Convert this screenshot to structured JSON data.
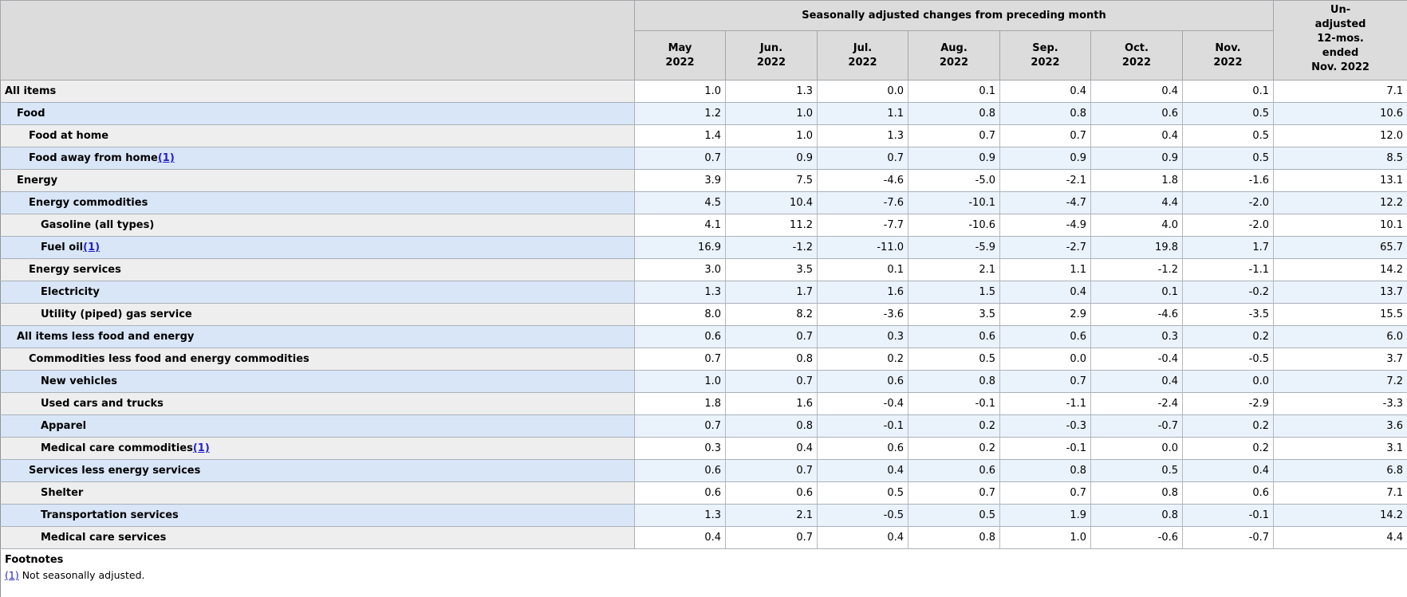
{
  "table": {
    "header": {
      "group_title": "Seasonally adjusted changes from preceding month",
      "months": [
        {
          "month": "May",
          "year": "2022"
        },
        {
          "month": "Jun.",
          "year": "2022"
        },
        {
          "month": "Jul.",
          "year": "2022"
        },
        {
          "month": "Aug.",
          "year": "2022"
        },
        {
          "month": "Sep.",
          "year": "2022"
        },
        {
          "month": "Oct.",
          "year": "2022"
        },
        {
          "month": "Nov.",
          "year": "2022"
        }
      ],
      "unadjusted_lines": [
        "Un-",
        "adjusted",
        "12-mos.",
        "ended",
        "Nov. 2022"
      ]
    },
    "rows": [
      {
        "label": "All items",
        "indent": 0,
        "footnote_marker": "",
        "values": [
          "1.0",
          "1.3",
          "0.0",
          "0.1",
          "0.4",
          "0.4",
          "0.1"
        ],
        "unadjusted": "7.1"
      },
      {
        "label": "Food",
        "indent": 1,
        "footnote_marker": "",
        "values": [
          "1.2",
          "1.0",
          "1.1",
          "0.8",
          "0.8",
          "0.6",
          "0.5"
        ],
        "unadjusted": "10.6"
      },
      {
        "label": "Food at home",
        "indent": 2,
        "footnote_marker": "",
        "values": [
          "1.4",
          "1.0",
          "1.3",
          "0.7",
          "0.7",
          "0.4",
          "0.5"
        ],
        "unadjusted": "12.0"
      },
      {
        "label": "Food away from home",
        "indent": 2,
        "footnote_marker": "(1)",
        "values": [
          "0.7",
          "0.9",
          "0.7",
          "0.9",
          "0.9",
          "0.9",
          "0.5"
        ],
        "unadjusted": "8.5"
      },
      {
        "label": "Energy",
        "indent": 1,
        "footnote_marker": "",
        "values": [
          "3.9",
          "7.5",
          "-4.6",
          "-5.0",
          "-2.1",
          "1.8",
          "-1.6"
        ],
        "unadjusted": "13.1"
      },
      {
        "label": "Energy commodities",
        "indent": 2,
        "footnote_marker": "",
        "values": [
          "4.5",
          "10.4",
          "-7.6",
          "-10.1",
          "-4.7",
          "4.4",
          "-2.0"
        ],
        "unadjusted": "12.2"
      },
      {
        "label": "Gasoline (all types)",
        "indent": 3,
        "footnote_marker": "",
        "values": [
          "4.1",
          "11.2",
          "-7.7",
          "-10.6",
          "-4.9",
          "4.0",
          "-2.0"
        ],
        "unadjusted": "10.1"
      },
      {
        "label": "Fuel oil",
        "indent": 3,
        "footnote_marker": "(1)",
        "values": [
          "16.9",
          "-1.2",
          "-11.0",
          "-5.9",
          "-2.7",
          "19.8",
          "1.7"
        ],
        "unadjusted": "65.7"
      },
      {
        "label": "Energy services",
        "indent": 2,
        "footnote_marker": "",
        "values": [
          "3.0",
          "3.5",
          "0.1",
          "2.1",
          "1.1",
          "-1.2",
          "-1.1"
        ],
        "unadjusted": "14.2"
      },
      {
        "label": "Electricity",
        "indent": 3,
        "footnote_marker": "",
        "values": [
          "1.3",
          "1.7",
          "1.6",
          "1.5",
          "0.4",
          "0.1",
          "-0.2"
        ],
        "unadjusted": "13.7"
      },
      {
        "label": "Utility (piped) gas service",
        "indent": 3,
        "footnote_marker": "",
        "values": [
          "8.0",
          "8.2",
          "-3.6",
          "3.5",
          "2.9",
          "-4.6",
          "-3.5"
        ],
        "unadjusted": "15.5"
      },
      {
        "label": "All items less food and energy",
        "indent": 1,
        "footnote_marker": "",
        "values": [
          "0.6",
          "0.7",
          "0.3",
          "0.6",
          "0.6",
          "0.3",
          "0.2"
        ],
        "unadjusted": "6.0"
      },
      {
        "label": "Commodities less food and energy commodities",
        "indent": 2,
        "footnote_marker": "",
        "values": [
          "0.7",
          "0.8",
          "0.2",
          "0.5",
          "0.0",
          "-0.4",
          "-0.5"
        ],
        "unadjusted": "3.7"
      },
      {
        "label": "New vehicles",
        "indent": 3,
        "footnote_marker": "",
        "values": [
          "1.0",
          "0.7",
          "0.6",
          "0.8",
          "0.7",
          "0.4",
          "0.0"
        ],
        "unadjusted": "7.2"
      },
      {
        "label": "Used cars and trucks",
        "indent": 3,
        "footnote_marker": "",
        "values": [
          "1.8",
          "1.6",
          "-0.4",
          "-0.1",
          "-1.1",
          "-2.4",
          "-2.9"
        ],
        "unadjusted": "-3.3"
      },
      {
        "label": "Apparel",
        "indent": 3,
        "footnote_marker": "",
        "values": [
          "0.7",
          "0.8",
          "-0.1",
          "0.2",
          "-0.3",
          "-0.7",
          "0.2"
        ],
        "unadjusted": "3.6"
      },
      {
        "label": "Medical care commodities",
        "indent": 3,
        "footnote_marker": "(1)",
        "values": [
          "0.3",
          "0.4",
          "0.6",
          "0.2",
          "-0.1",
          "0.0",
          "0.2"
        ],
        "unadjusted": "3.1"
      },
      {
        "label": "Services less energy services",
        "indent": 2,
        "footnote_marker": "",
        "values": [
          "0.6",
          "0.7",
          "0.4",
          "0.6",
          "0.8",
          "0.5",
          "0.4"
        ],
        "unadjusted": "6.8"
      },
      {
        "label": "Shelter",
        "indent": 3,
        "footnote_marker": "",
        "values": [
          "0.6",
          "0.6",
          "0.5",
          "0.7",
          "0.7",
          "0.8",
          "0.6"
        ],
        "unadjusted": "7.1"
      },
      {
        "label": "Transportation services",
        "indent": 3,
        "footnote_marker": "",
        "values": [
          "1.3",
          "2.1",
          "-0.5",
          "0.5",
          "1.9",
          "0.8",
          "-0.1"
        ],
        "unadjusted": "14.2"
      },
      {
        "label": "Medical care services",
        "indent": 3,
        "footnote_marker": "",
        "values": [
          "0.4",
          "0.7",
          "0.4",
          "0.8",
          "1.0",
          "-0.6",
          "-0.7"
        ],
        "unadjusted": "4.4"
      }
    ],
    "footnotes": {
      "title": "Footnotes",
      "items": [
        {
          "marker": "(1)",
          "text": "Not seasonally adjusted."
        }
      ]
    },
    "colors": {
      "header_bg": "#dcdcdc",
      "row_odd_stub_bg": "#eeeeee",
      "row_odd_data_bg": "#ffffff",
      "row_even_stub_bg": "#d9e6f8",
      "row_even_data_bg": "#eaf2fc",
      "border": "#a9aeb5",
      "link": "#2222cc",
      "text": "#000000"
    }
  }
}
